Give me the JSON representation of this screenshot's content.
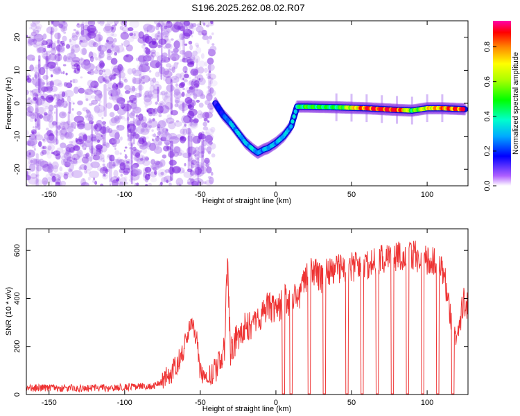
{
  "title": "S196.2025.262.08.02.R07",
  "chart_data": [
    {
      "type": "heatmap",
      "name": "spectrogram",
      "xlabel": "Height of straight line (km)",
      "ylabel": "Frequency (Hz)",
      "xlim": [
        -165,
        127
      ],
      "ylim": [
        -25,
        25
      ],
      "xticks": [
        -150,
        -100,
        -50,
        0,
        50,
        100
      ],
      "yticks": [
        -20,
        -10,
        0,
        10,
        20
      ],
      "noise_region_x": [
        -165,
        -40
      ],
      "colorbar": {
        "label": "Normalized spectral amplitude",
        "range": [
          0,
          0.95
        ],
        "ticks": [
          0.0,
          0.2,
          0.4,
          0.6,
          0.8
        ]
      },
      "signal_track": {
        "x": [
          -40,
          -35,
          -30,
          -25,
          -20,
          -15,
          -12,
          -8,
          -5,
          0,
          5,
          10,
          14,
          20,
          40,
          60,
          80,
          90,
          100,
          110,
          125
        ],
        "y": [
          0,
          -3.5,
          -6,
          -9,
          -12,
          -14,
          -15,
          -14,
          -13.5,
          -12,
          -10,
          -7,
          -1,
          -1,
          -1.2,
          -1.5,
          -2,
          -2.2,
          -1.5,
          -1.5,
          -1.8
        ],
        "level": [
          0.15,
          0.2,
          0.3,
          0.32,
          0.3,
          0.35,
          0.25,
          0.3,
          0.3,
          0.3,
          0.32,
          0.3,
          0.4,
          0.5,
          0.45,
          0.9,
          0.95,
          0.5,
          0.7,
          0.8,
          0.9
        ]
      }
    },
    {
      "type": "line",
      "name": "snr",
      "xlabel": "Height of straight line (km)",
      "ylabel": "SNR (10 * v/v)",
      "xlim": [
        -165,
        127
      ],
      "ylim": [
        0,
        690
      ],
      "xticks": [
        -150,
        -100,
        -50,
        0,
        50,
        100
      ],
      "yticks": [
        0,
        200,
        400,
        600
      ],
      "series": [
        {
          "name": "SNR",
          "color": "#ee3333",
          "x": [
            -165,
            -140,
            -110,
            -95,
            -80,
            -70,
            -62,
            -58,
            -56,
            -54,
            -52,
            -50,
            -46,
            -42,
            -38,
            -34,
            -32,
            -30,
            -28,
            -25,
            -20,
            -15,
            -10,
            -5,
            0,
            5,
            10,
            15,
            20,
            25,
            30,
            35,
            40,
            50,
            60,
            70,
            80,
            90,
            100,
            108,
            112,
            116,
            120,
            124,
            127
          ],
          "y": [
            20,
            20,
            20,
            25,
            30,
            60,
            150,
            240,
            270,
            250,
            200,
            80,
            60,
            70,
            140,
            200,
            560,
            180,
            210,
            250,
            280,
            300,
            330,
            380,
            330,
            400,
            380,
            410,
            480,
            520,
            480,
            510,
            520,
            530,
            540,
            560,
            570,
            580,
            560,
            540,
            470,
            300,
            250,
            390,
            370
          ],
          "dropouts": [
            5,
            10,
            22,
            32,
            47,
            57,
            67,
            77,
            87,
            97,
            107,
            117
          ]
        }
      ]
    }
  ],
  "colors": {
    "trace": "#ee3333",
    "noise": "#7a20e0"
  }
}
